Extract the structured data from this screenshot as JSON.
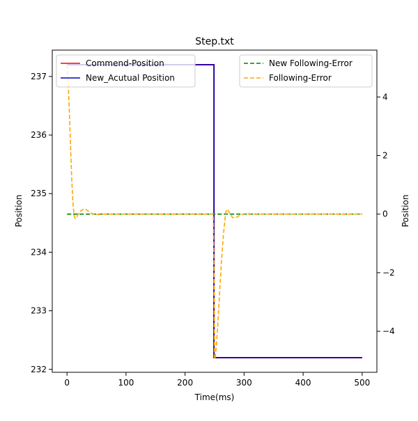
{
  "chart_data": {
    "type": "line",
    "title": "Step.txt",
    "xlabel": "Time(ms)",
    "ylabel_left": "Position",
    "ylabel_right": "Position",
    "xlim": [
      -25,
      525
    ],
    "ylim_left": [
      231.95,
      237.45
    ],
    "ylim_right": [
      -5.4,
      5.6
    ],
    "x_ticks": [
      0,
      100,
      200,
      300,
      400,
      500
    ],
    "y_left_ticks": [
      232,
      233,
      234,
      235,
      236,
      237
    ],
    "y_right_ticks": [
      -4,
      -2,
      0,
      2,
      4
    ],
    "grid": false,
    "legend_left": {
      "placement": "upper-left",
      "entries": [
        "Commend-Position",
        "New_Acutual Position"
      ]
    },
    "legend_right": {
      "placement": "upper-right",
      "entries": [
        "New Following-Error",
        "Following-Error"
      ]
    },
    "series": [
      {
        "name": "Commend-Position",
        "axis": "left",
        "color": "#ff0000",
        "style": "solid",
        "x": [
          0,
          249,
          249,
          500
        ],
        "y": [
          237.2,
          237.2,
          232.2,
          232.2
        ]
      },
      {
        "name": "New_Acutual Position",
        "axis": "left",
        "color": "#0000cc",
        "style": "solid",
        "x": [
          0,
          249,
          249,
          500
        ],
        "y": [
          237.2,
          237.2,
          232.2,
          232.2
        ]
      },
      {
        "name": "New Following-Error",
        "axis": "right",
        "color": "#008000",
        "style": "dashed",
        "x": [
          0,
          500
        ],
        "y": [
          0,
          0
        ]
      },
      {
        "name": "Following-Error",
        "axis": "right",
        "color": "#ffa500",
        "style": "dashed",
        "x": [
          0,
          2,
          4,
          6,
          8,
          10,
          12,
          14,
          16,
          18,
          20,
          24,
          28,
          32,
          36,
          40,
          45,
          50,
          60,
          80,
          120,
          200,
          248,
          249,
          250,
          251,
          253,
          256,
          259,
          262,
          265,
          268,
          270,
          272,
          275,
          278,
          281,
          284,
          288,
          292,
          296,
          300,
          310,
          330,
          400,
          500
        ],
        "y": [
          5.1,
          4.5,
          3.5,
          2.3,
          1.2,
          0.4,
          -0.05,
          -0.15,
          -0.12,
          -0.04,
          0.05,
          0.12,
          0.17,
          0.16,
          0.1,
          0.04,
          0.0,
          -0.02,
          0.0,
          0.0,
          0.0,
          0.0,
          0.0,
          -2.0,
          -4.95,
          -4.9,
          -4.5,
          -3.6,
          -2.5,
          -1.5,
          -0.7,
          -0.1,
          0.15,
          0.16,
          0.05,
          -0.05,
          -0.12,
          -0.14,
          -0.1,
          -0.05,
          -0.02,
          0.01,
          0.01,
          0.0,
          0.0,
          0.0
        ]
      }
    ]
  }
}
